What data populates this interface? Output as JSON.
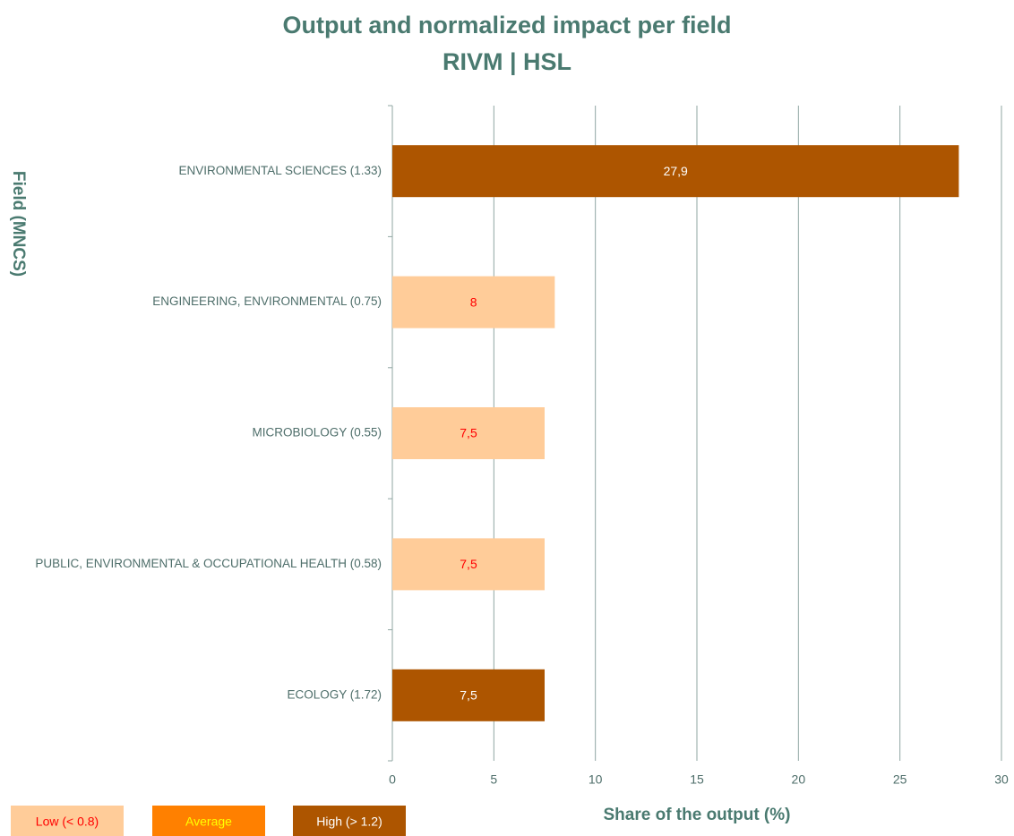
{
  "chart_data": {
    "type": "hbar",
    "title": "Output and normalized impact per field",
    "subtitle": "RIVM | HSL",
    "y_label": "Field (MNCS)",
    "x_label": "Share of the output (%)",
    "categories": [
      "ENVIRONMENTAL SCIENCES (1.33)",
      "ENGINEERING, ENVIRONMENTAL (0.75)",
      "MICROBIOLOGY (0.55)",
      "PUBLIC, ENVIRONMENTAL & OCCUPATIONAL HEALTH (0.58)",
      "ECOLOGY (1.72)"
    ],
    "values": [
      27.9,
      8,
      7.5,
      7.5,
      7.5
    ],
    "value_labels": [
      "27,9",
      "8",
      "7,5",
      "7,5",
      "7,5"
    ],
    "colors": [
      "#ad5500",
      "#ffcc99",
      "#ffcc99",
      "#ffcc99",
      "#ad5500"
    ],
    "value_label_colors": [
      "#ffffff",
      "#ff0000",
      "#ff0000",
      "#ff0000",
      "#ffffff"
    ],
    "xlim": [
      0,
      30
    ],
    "xticks": [
      0,
      5,
      10,
      15,
      20,
      25,
      30
    ],
    "grid": true,
    "legend": [
      {
        "label": "Low (< 0.8)",
        "color": "#ffcc99",
        "text_color": "#ff0000"
      },
      {
        "label": "Average",
        "color": "#ff8000",
        "text_color": "#ffff00"
      },
      {
        "label": "High (> 1.2)",
        "color": "#ad5500",
        "text_color": "#ffffff"
      }
    ]
  }
}
